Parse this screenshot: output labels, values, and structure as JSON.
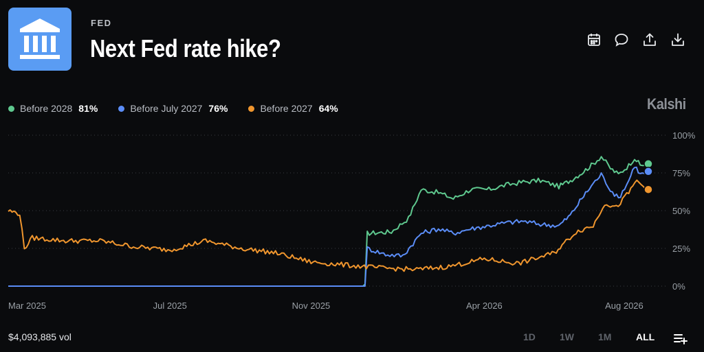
{
  "header": {
    "category": "FED",
    "title": "Next Fed rate hike?",
    "logo_icon": "bank-building-icon"
  },
  "toolbar": [
    {
      "name": "calendar-icon"
    },
    {
      "name": "comment-icon"
    },
    {
      "name": "share-icon"
    },
    {
      "name": "download-icon"
    }
  ],
  "brand": "Kalshi",
  "legend": [
    {
      "name": "Before 2028",
      "value": "81%",
      "color": "#5fc98f"
    },
    {
      "name": "Before July 2027",
      "value": "76%",
      "color": "#5b8df7"
    },
    {
      "name": "Before 2027",
      "value": "64%",
      "color": "#f0962e"
    }
  ],
  "footer": {
    "volume": "$4,093,885 vol",
    "ranges": [
      "1D",
      "1W",
      "1M",
      "ALL"
    ],
    "active_range": "ALL",
    "menu_icon": "list-add-icon"
  },
  "chart_data": {
    "type": "line",
    "y_tick_labels": [
      "100%",
      "75%",
      "50%",
      "25%",
      "0%"
    ],
    "y_ticks": [
      100,
      75,
      50,
      25,
      0
    ],
    "ylim": [
      0,
      100
    ],
    "x_tick_labels": [
      "Mar 2025",
      "Jul 2025",
      "Nov 2025",
      "Apr 2026",
      "Aug 2026"
    ],
    "x_ticks": [
      "2025-03-01",
      "2025-07-01",
      "2025-11-01",
      "2026-04-01",
      "2026-08-01"
    ],
    "xlim": [
      "2025-02-10",
      "2026-08-25"
    ],
    "grid": true,
    "legend_position": "top-left",
    "series": [
      {
        "name": "Before 2028",
        "color": "#5fc98f",
        "points": [
          [
            "2025-02-10",
            0
          ],
          [
            "2025-12-18",
            0
          ],
          [
            "2025-12-20",
            35
          ],
          [
            "2026-01-10",
            36
          ],
          [
            "2026-01-25",
            45
          ],
          [
            "2026-02-05",
            64
          ],
          [
            "2026-02-20",
            62
          ],
          [
            "2026-03-05",
            58
          ],
          [
            "2026-03-20",
            64
          ],
          [
            "2026-04-05",
            64
          ],
          [
            "2026-04-20",
            67
          ],
          [
            "2026-05-05",
            69
          ],
          [
            "2026-05-20",
            70
          ],
          [
            "2026-06-05",
            66
          ],
          [
            "2026-06-15",
            70
          ],
          [
            "2026-06-25",
            75
          ],
          [
            "2026-07-05",
            81
          ],
          [
            "2026-07-12",
            86
          ],
          [
            "2026-07-20",
            78
          ],
          [
            "2026-07-27",
            74
          ],
          [
            "2026-08-05",
            80
          ],
          [
            "2026-08-10",
            85
          ],
          [
            "2026-08-15",
            80
          ],
          [
            "2026-08-22",
            81
          ]
        ]
      },
      {
        "name": "Before July 2027",
        "color": "#5b8df7",
        "points": [
          [
            "2025-02-10",
            0
          ],
          [
            "2025-12-18",
            0
          ],
          [
            "2025-12-20",
            25
          ],
          [
            "2026-01-05",
            21
          ],
          [
            "2026-01-20",
            20
          ],
          [
            "2026-02-05",
            35
          ],
          [
            "2026-02-20",
            38
          ],
          [
            "2026-03-05",
            35
          ],
          [
            "2026-03-20",
            38
          ],
          [
            "2026-04-05",
            40
          ],
          [
            "2026-04-20",
            42
          ],
          [
            "2026-05-05",
            43
          ],
          [
            "2026-05-20",
            41
          ],
          [
            "2026-06-05",
            40
          ],
          [
            "2026-06-15",
            47
          ],
          [
            "2026-06-25",
            58
          ],
          [
            "2026-07-05",
            68
          ],
          [
            "2026-07-12",
            74
          ],
          [
            "2026-07-20",
            64
          ],
          [
            "2026-07-27",
            58
          ],
          [
            "2026-08-05",
            70
          ],
          [
            "2026-08-10",
            80
          ],
          [
            "2026-08-15",
            74
          ],
          [
            "2026-08-22",
            76
          ]
        ]
      },
      {
        "name": "Before 2027",
        "color": "#f0962e",
        "points": [
          [
            "2025-02-10",
            50
          ],
          [
            "2025-02-20",
            48
          ],
          [
            "2025-02-24",
            25
          ],
          [
            "2025-03-03",
            32
          ],
          [
            "2025-04-01",
            30
          ],
          [
            "2025-05-01",
            30
          ],
          [
            "2025-06-01",
            26
          ],
          [
            "2025-07-01",
            24
          ],
          [
            "2025-08-01",
            30
          ],
          [
            "2025-09-01",
            25
          ],
          [
            "2025-10-01",
            22
          ],
          [
            "2025-11-01",
            16
          ],
          [
            "2025-12-01",
            14
          ],
          [
            "2026-01-01",
            12
          ],
          [
            "2026-02-01",
            11
          ],
          [
            "2026-03-01",
            13
          ],
          [
            "2026-04-01",
            18
          ],
          [
            "2026-05-01",
            15
          ],
          [
            "2026-06-01",
            22
          ],
          [
            "2026-06-20",
            36
          ],
          [
            "2026-07-05",
            40
          ],
          [
            "2026-07-15",
            55
          ],
          [
            "2026-07-25",
            52
          ],
          [
            "2026-08-05",
            62
          ],
          [
            "2026-08-12",
            70
          ],
          [
            "2026-08-18",
            66
          ],
          [
            "2026-08-22",
            64
          ]
        ]
      }
    ]
  }
}
